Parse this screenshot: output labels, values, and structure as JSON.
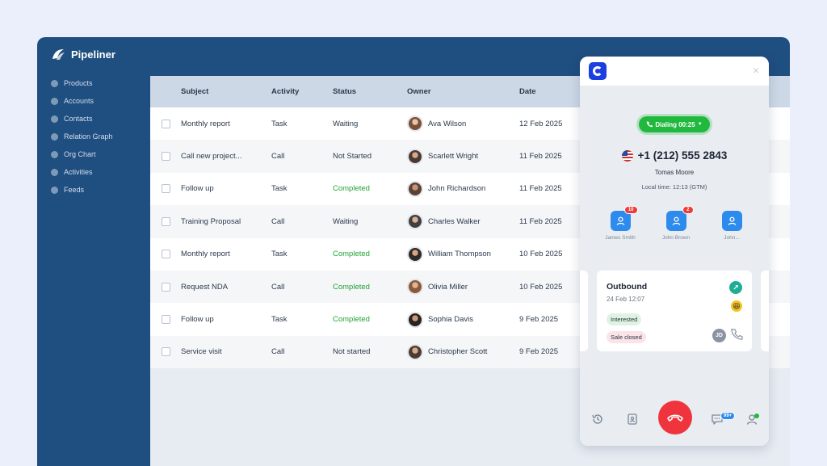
{
  "app": {
    "name": "Pipeliner"
  },
  "sidebar": {
    "items": [
      {
        "label": "Products"
      },
      {
        "label": "Accounts"
      },
      {
        "label": "Contacts"
      },
      {
        "label": "Relation Graph"
      },
      {
        "label": "Org Chart"
      },
      {
        "label": "Activities"
      },
      {
        "label": "Feeds"
      }
    ]
  },
  "table": {
    "headers": {
      "subject": "Subject",
      "activity": "Activity",
      "status": "Status",
      "owner": "Owner",
      "date": "Date"
    },
    "rows": [
      {
        "subject": "Monthly report",
        "activity": "Task",
        "status": "Waiting",
        "owner": "Ava Wilson",
        "date": "12 Feb 2025"
      },
      {
        "subject": "Call new project...",
        "activity": "Call",
        "status": "Not Started",
        "owner": "Scarlett Wright",
        "date": "11 Feb 2025"
      },
      {
        "subject": "Follow up",
        "activity": "Task",
        "status": "Completed",
        "owner": "John Richardson",
        "date": "11 Feb 2025"
      },
      {
        "subject": "Training Proposal",
        "activity": "Call",
        "status": "Waiting",
        "owner": "Charles Walker",
        "date": "11 Feb 2025"
      },
      {
        "subject": "Monthly report",
        "activity": "Task",
        "status": "Completed",
        "owner": "William Thompson",
        "date": "10 Feb 2025"
      },
      {
        "subject": "Request NDA",
        "activity": "Call",
        "status": "Completed",
        "owner": "Olivia Miller",
        "date": "10 Feb 2025"
      },
      {
        "subject": "Follow up",
        "activity": "Task",
        "status": "Completed",
        "owner": "Sophia Davis",
        "date": "9 Feb 2025"
      },
      {
        "subject": "Service visit",
        "activity": "Call",
        "status": "Not started",
        "owner": "Christopher Scott",
        "date": "9 Feb 2025"
      }
    ]
  },
  "dialer": {
    "close_symbol": "×",
    "status_pill": "Dialing 00:25",
    "phone_number": "+1 (212) 555 2843",
    "contact_name": "Tomas Moore",
    "local_time": "Local time: 12:13 (GTM)",
    "related_contacts": [
      {
        "name": "James Smith",
        "badge": "10"
      },
      {
        "name": "John Brown",
        "badge": "2"
      },
      {
        "name": "John...",
        "badge": ""
      }
    ],
    "call_card": {
      "title": "Outbound",
      "date": "24 Feb 12:07",
      "tags": [
        "Interested",
        "Sale closed"
      ],
      "initials": "JD"
    },
    "messages_badge": "99+"
  },
  "colors": {
    "app_bg": "#1f4e80",
    "completed": "#21a336",
    "dialing": "#20b83d",
    "hangup": "#f0343d",
    "accent": "#2d8bee"
  }
}
